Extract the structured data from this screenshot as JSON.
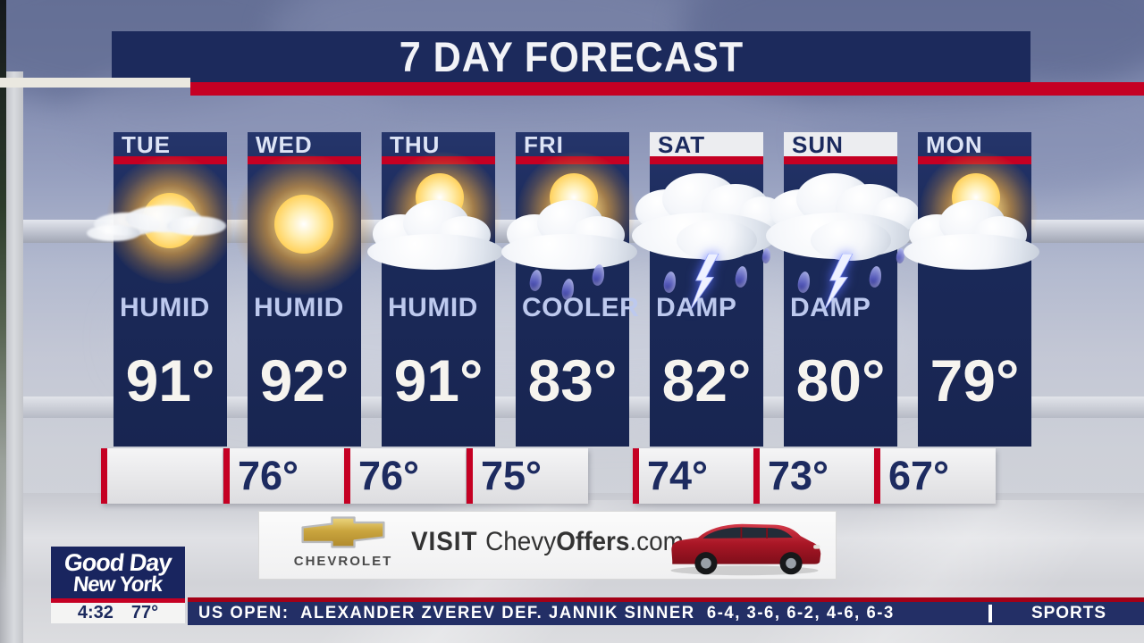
{
  "title": "7 DAY FORECAST",
  "forecast": {
    "days": [
      {
        "name": "TUE",
        "condition": "HUMID",
        "high": "91°",
        "low": "",
        "icon": "mostly-sunny",
        "header_style": "weekday"
      },
      {
        "name": "WED",
        "condition": "HUMID",
        "high": "92°",
        "low": "76°",
        "icon": "sunny",
        "header_style": "weekday"
      },
      {
        "name": "THU",
        "condition": "HUMID",
        "high": "91°",
        "low": "76°",
        "icon": "partly-cloudy",
        "header_style": "weekday"
      },
      {
        "name": "FRI",
        "condition": "COOLER",
        "high": "83°",
        "low": "75°",
        "icon": "sun-cloud-rain",
        "header_style": "weekday"
      },
      {
        "name": "SAT",
        "condition": "DAMP",
        "high": "82°",
        "low": "74°",
        "icon": "thunderstorm",
        "header_style": "weekend"
      },
      {
        "name": "SUN",
        "condition": "DAMP",
        "high": "80°",
        "low": "73°",
        "icon": "thunderstorm",
        "header_style": "weekend"
      },
      {
        "name": "MON",
        "condition": "",
        "high": "79°",
        "low": "67°",
        "icon": "partly-cloudy",
        "header_style": "weekday"
      }
    ]
  },
  "ad": {
    "brand": "CHEVROLET",
    "visit": "VISIT ",
    "site_chevy": "Chevy",
    "site_offers": "Offers",
    "site_dotcom": ".com"
  },
  "station": {
    "name_line1": "Good Day",
    "name_line2": "New York",
    "clock": "4:32",
    "temp": "77°"
  },
  "ticker": {
    "headline": "US OPEN:  ALEXANDER ZVEREV DEF. JANNIK SINNER  6-4, 3-6, 6-2, 4-6, 6-3",
    "section": "SPORTS"
  },
  "colors": {
    "navy": "#1c2a5c",
    "red": "#c50023",
    "weekend_header_bg": "#ecedf0",
    "condition_text": "#bdc9ee",
    "low_temp_text": "#1d2b60"
  }
}
